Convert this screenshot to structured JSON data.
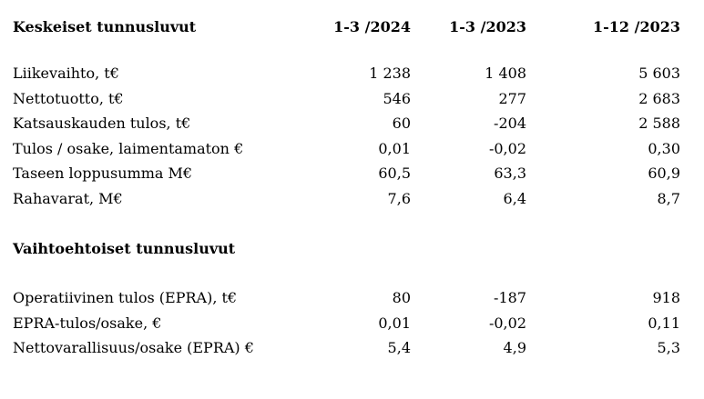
{
  "table": {
    "title": "Keskeiset tunnusluvut",
    "columns": [
      "1-3 /2024",
      "1-3 /2023",
      "1-12 /2023"
    ],
    "rows": [
      {
        "label": "Liikevaihto, t€",
        "values": [
          "1 238",
          "1 408",
          "5 603"
        ]
      },
      {
        "label": "Nettotuotto, t€",
        "values": [
          "546",
          "277",
          "2 683"
        ]
      },
      {
        "label": "Katsauskauden tulos, t€",
        "values": [
          "60",
          "-204",
          "2 588"
        ]
      },
      {
        "label": "Tulos / osake, laimentamaton €",
        "values": [
          "0,01",
          "-0,02",
          "0,30"
        ]
      },
      {
        "label": "Taseen loppusumma M€",
        "values": [
          "60,5",
          "63,3",
          "60,9"
        ]
      },
      {
        "label": "Rahavarat, M€",
        "values": [
          "7,6",
          "6,4",
          "8,7"
        ]
      }
    ]
  },
  "alternative": {
    "title": "Vaihtoehtoiset tunnusluvut",
    "rows": [
      {
        "label": "Operatiivinen tulos (EPRA), t€",
        "values": [
          "80",
          "-187",
          "918"
        ]
      },
      {
        "label": "EPRA-tulos/osake, €",
        "values": [
          "0,01",
          "-0,02",
          "0,11"
        ]
      },
      {
        "label": "Nettovarallisuus/osake (EPRA) €",
        "values": [
          "5,4",
          "4,9",
          "5,3"
        ]
      }
    ]
  }
}
